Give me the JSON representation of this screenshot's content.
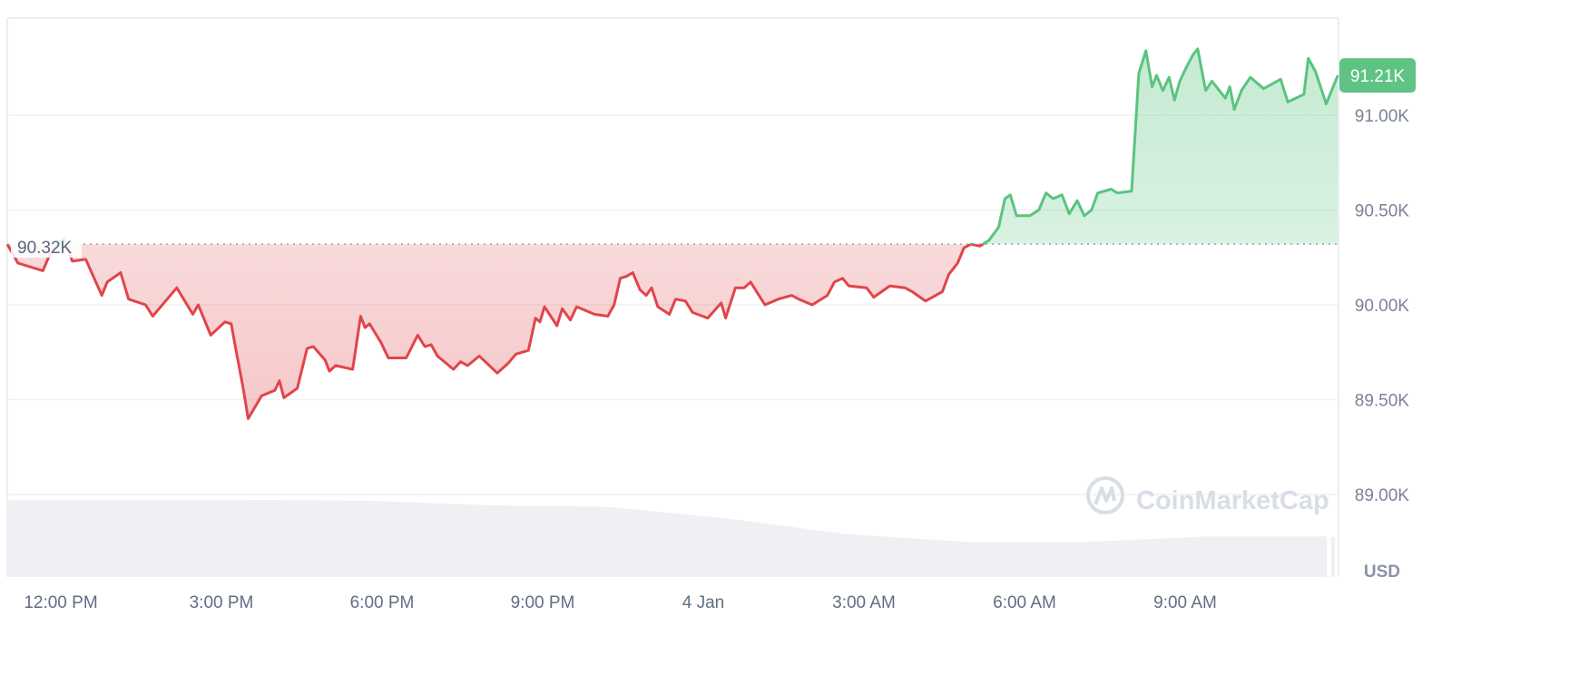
{
  "chart_data": {
    "type": "area",
    "currency_label": "USD",
    "watermark": "CoinMarketCap",
    "ylim": [
      88.75,
      91.5
    ],
    "y_ticks": [
      "91.00K",
      "90.50K",
      "90.00K",
      "89.50K",
      "89.00K"
    ],
    "y_tick_values": [
      91.0,
      90.5,
      90.0,
      89.5,
      89.0
    ],
    "x_ticks": [
      "12:00 PM",
      "3:00 PM",
      "6:00 PM",
      "9:00 PM",
      "4 Jan",
      "3:00 AM",
      "6:00 AM",
      "9:00 AM"
    ],
    "x_tick_times": [
      "12:00",
      "15:00",
      "18:00",
      "21:00",
      "00:00",
      "03:00",
      "06:00",
      "09:00"
    ],
    "baseline": {
      "value": 90.32,
      "label": "90.32K"
    },
    "current": {
      "value": 91.21,
      "label": "91.21K"
    },
    "colors": {
      "up": "#5ac47f",
      "down": "#e0454a",
      "current_badge": "#5ec383",
      "volume": "#eff0f4"
    },
    "grid": true,
    "series": [
      {
        "time": [
          "11:00",
          "11:12",
          "11:40",
          "11:48",
          "12:03",
          "12:13",
          "12:28",
          "12:46",
          "12:52",
          "13:07",
          "13:16",
          "13:35",
          "13:43",
          "14:10",
          "14:28",
          "14:34",
          "14:48",
          "15:04",
          "15:11",
          "15:16",
          "15:24",
          "15:30",
          "15:45",
          "16:00",
          "16:05",
          "16:10",
          "16:25",
          "16:36",
          "16:43",
          "16:56",
          "17:01",
          "17:08",
          "17:27",
          "17:36",
          "17:41",
          "17:46",
          "17:59",
          "18:07",
          "18:27",
          "18:40",
          "18:48",
          "18:55",
          "19:02",
          "19:20",
          "19:28",
          "19:36",
          "19:49",
          "20:09",
          "20:21",
          "20:30",
          "20:44",
          "20:52",
          "20:57",
          "21:02",
          "21:16",
          "21:22",
          "21:31",
          "21:38",
          "21:58",
          "22:13",
          "22:20",
          "22:27",
          "22:34",
          "22:41",
          "22:49",
          "22:56",
          "23:02",
          "23:09",
          "23:22",
          "23:29",
          "23:40",
          "23:48",
          "00:05",
          "00:20",
          "00:25",
          "00:36",
          "00:46",
          "00:53",
          "01:09",
          "01:24",
          "01:39",
          "01:47",
          "02:02",
          "02:19",
          "02:27",
          "02:36",
          "02:43",
          "03:03",
          "03:11",
          "03:29",
          "03:46",
          "03:54",
          "04:09",
          "04:28",
          "04:35",
          "04:45",
          "04:52",
          "05:00",
          "05:10",
          "05:20",
          "05:31",
          "05:38",
          "05:44",
          "05:51",
          "06:06",
          "06:16",
          "06:24",
          "06:32",
          "06:42",
          "06:50",
          "06:59",
          "07:07",
          "07:15",
          "07:22",
          "07:37",
          "07:44",
          "08:00",
          "08:08",
          "08:16",
          "08:23",
          "08:28",
          "08:35",
          "08:42",
          "08:48",
          "08:54",
          "09:02",
          "09:09",
          "09:14",
          "09:23",
          "09:30",
          "09:45",
          "09:50",
          "09:55",
          "10:03",
          "10:13",
          "10:28",
          "10:47",
          "10:55",
          "11:13",
          "11:18",
          "11:26",
          "11:38",
          "11:51"
        ],
        "price_k": [
          90.32,
          90.22,
          90.18,
          90.27,
          90.35,
          90.23,
          90.24,
          90.05,
          90.12,
          90.17,
          90.03,
          90.0,
          89.94,
          90.09,
          89.95,
          90.0,
          89.84,
          89.91,
          89.9,
          89.77,
          89.57,
          89.4,
          89.52,
          89.55,
          89.6,
          89.51,
          89.56,
          89.77,
          89.78,
          89.71,
          89.65,
          89.68,
          89.66,
          89.94,
          89.88,
          89.9,
          89.8,
          89.72,
          89.72,
          89.84,
          89.78,
          89.79,
          89.73,
          89.66,
          89.7,
          89.68,
          89.73,
          89.64,
          89.69,
          89.74,
          89.76,
          89.93,
          89.91,
          89.99,
          89.89,
          89.98,
          89.92,
          89.99,
          89.95,
          89.94,
          90.0,
          90.14,
          90.15,
          90.17,
          90.08,
          90.05,
          90.09,
          89.99,
          89.95,
          90.03,
          90.02,
          89.96,
          89.93,
          90.01,
          89.93,
          90.09,
          90.09,
          90.12,
          90.0,
          90.03,
          90.05,
          90.03,
          90.0,
          90.05,
          90.12,
          90.14,
          90.1,
          90.09,
          90.04,
          90.1,
          90.09,
          90.07,
          90.02,
          90.07,
          90.16,
          90.22,
          90.3,
          90.32,
          90.31,
          90.34,
          90.41,
          90.56,
          90.58,
          90.47,
          90.47,
          90.5,
          90.59,
          90.56,
          90.58,
          90.48,
          90.55,
          90.47,
          90.5,
          90.59,
          90.61,
          90.59,
          90.6,
          91.22,
          91.34,
          91.15,
          91.21,
          91.13,
          91.2,
          91.08,
          91.18,
          91.26,
          91.32,
          91.35,
          91.13,
          91.18,
          91.09,
          91.15,
          91.03,
          91.13,
          91.2,
          91.14,
          91.19,
          91.07,
          91.11,
          91.3,
          91.23,
          91.06,
          91.21
        ]
      }
    ],
    "volume_relative": [
      0.99,
      0.99,
      0.99,
      0.98,
      0.92,
      0.9,
      0.75,
      0.55,
      0.45,
      0.45,
      0.52,
      0.52
    ]
  }
}
